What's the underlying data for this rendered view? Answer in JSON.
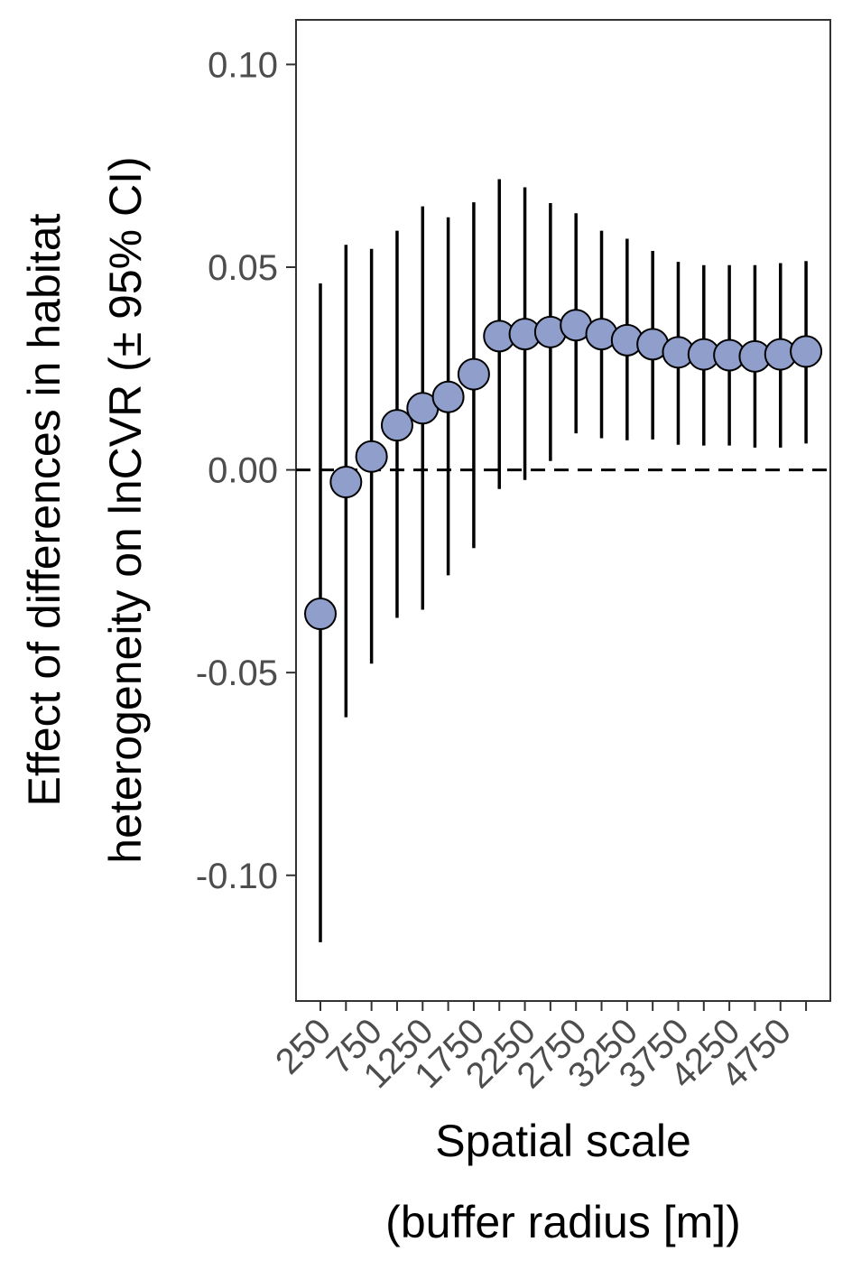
{
  "chart_data": {
    "type": "scatter",
    "xlabel": [
      "Spatial scale",
      "(buffer radius [m])"
    ],
    "ylabel": [
      "Effect of differences in habitat",
      "heterogeneity on lnCVR (± 95% CI)"
    ],
    "ylim": [
      -0.131,
      0.111
    ],
    "yticks": [
      "-0.10",
      "-0.05",
      "0.00",
      "0.05",
      "0.10"
    ],
    "ytick_values": [
      -0.1,
      -0.05,
      0.0,
      0.05,
      0.1
    ],
    "x": [
      250,
      500,
      750,
      1000,
      1250,
      1500,
      1750,
      2000,
      2250,
      2500,
      2750,
      3000,
      3250,
      3500,
      3750,
      4000,
      4250,
      4500,
      4750,
      5000
    ],
    "xtick_labels": [
      "250",
      "750",
      "1250",
      "1750",
      "2250",
      "2750",
      "3250",
      "3750",
      "4250",
      "4750"
    ],
    "xtick_label_values": [
      250,
      750,
      1250,
      1750,
      2250,
      2750,
      3250,
      3750,
      4250,
      4750
    ],
    "estimate": [
      -0.0355,
      -0.003,
      0.0033,
      0.011,
      0.0152,
      0.018,
      0.0236,
      0.033,
      0.0335,
      0.034,
      0.0357,
      0.0335,
      0.032,
      0.031,
      0.029,
      0.0285,
      0.0283,
      0.028,
      0.0285,
      0.0292
    ],
    "ci_lower": [
      -0.1165,
      -0.061,
      -0.0478,
      -0.0365,
      -0.0345,
      -0.026,
      -0.0193,
      -0.0047,
      -0.0025,
      0.0022,
      0.009,
      0.0078,
      0.0073,
      0.0075,
      0.0062,
      0.006,
      0.006,
      0.0055,
      0.0055,
      0.0065
    ],
    "ci_upper": [
      0.046,
      0.0555,
      0.0545,
      0.059,
      0.065,
      0.0623,
      0.066,
      0.0717,
      0.0697,
      0.0658,
      0.0633,
      0.059,
      0.057,
      0.054,
      0.0513,
      0.0505,
      0.0505,
      0.0505,
      0.051,
      0.0515
    ],
    "reference_line": 0,
    "point_color": "#8f9ecb",
    "grid": false,
    "legend": "none"
  }
}
